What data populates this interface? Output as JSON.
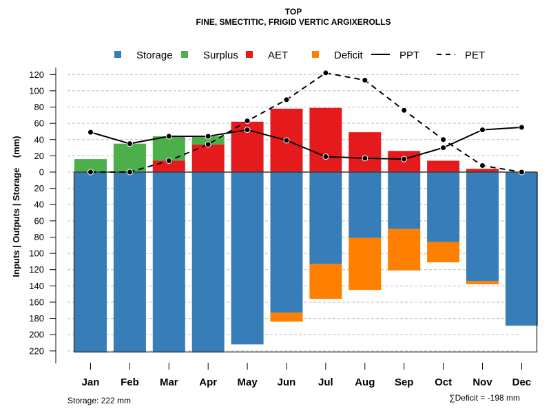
{
  "chart_data": {
    "type": "bar",
    "title": "TOP",
    "subtitle": "FINE, SMECTITIC, FRIGID VERTIC ARGIXEROLLS",
    "xlabel": "",
    "ylabel": "Inputs | Outputs | Storage    (mm)",
    "categories": [
      "Jan",
      "Feb",
      "Mar",
      "Apr",
      "May",
      "Jun",
      "Jul",
      "Aug",
      "Sep",
      "Oct",
      "Nov",
      "Dec"
    ],
    "upper_ylim": [
      0,
      120
    ],
    "lower_ylim": [
      0,
      220
    ],
    "yticks_upper": [
      0,
      20,
      40,
      60,
      80,
      100,
      120
    ],
    "yticks_lower": [
      20,
      40,
      60,
      80,
      100,
      120,
      140,
      160,
      180,
      200,
      220
    ],
    "grid": true,
    "legend_position": "top",
    "series": [
      {
        "name": "Storage",
        "kind": "bar-down",
        "color": "#377EB8",
        "values": [
          222,
          222,
          222,
          222,
          212,
          173,
          113,
          81,
          70,
          86,
          134,
          189
        ]
      },
      {
        "name": "Deficit",
        "kind": "bar-down-stacked",
        "color": "#FF7F00",
        "values": [
          0,
          0,
          0,
          0,
          0,
          11,
          43,
          64,
          51,
          25,
          4,
          0
        ]
      },
      {
        "name": "AET",
        "kind": "bar-up",
        "color": "#E41A1C",
        "values": [
          0,
          0,
          14,
          34,
          62,
          78,
          79,
          49,
          26,
          14,
          4,
          0
        ]
      },
      {
        "name": "Surplus",
        "kind": "bar-up-stacked",
        "color": "#4DAF4A",
        "values": [
          16,
          35,
          30,
          10,
          0,
          0,
          0,
          0,
          0,
          0,
          0,
          0
        ]
      },
      {
        "name": "PPT",
        "kind": "line-solid",
        "color": "#000000",
        "values": [
          49,
          35,
          44,
          44,
          52,
          39,
          19,
          17,
          16,
          30,
          52,
          55
        ]
      },
      {
        "name": "PET",
        "kind": "line-dashed",
        "color": "#000000",
        "values": [
          0,
          0,
          14,
          34,
          63,
          89,
          122,
          113,
          76,
          40,
          8,
          0
        ]
      }
    ],
    "legend": [
      {
        "label": "Storage",
        "symbol": "square",
        "color": "#377EB8"
      },
      {
        "label": "Surplus",
        "symbol": "square",
        "color": "#4DAF4A"
      },
      {
        "label": "AET",
        "symbol": "square",
        "color": "#E41A1C"
      },
      {
        "label": "Deficit",
        "symbol": "square",
        "color": "#FF7F00"
      },
      {
        "label": "PPT",
        "symbol": "solid-line",
        "color": "#000000"
      },
      {
        "label": "PET",
        "symbol": "dashed-line",
        "color": "#000000"
      }
    ],
    "annotations": {
      "storage": "Storage: 222 mm",
      "deficit": "∑Deficit = -198 mm"
    }
  }
}
